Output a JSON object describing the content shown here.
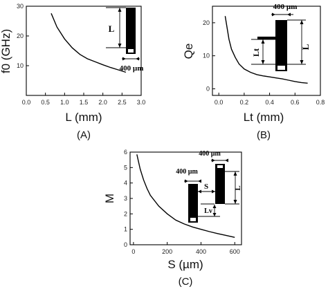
{
  "chart_data": [
    {
      "type": "line",
      "panel_label": "(A)",
      "xlabel": "L (mm)",
      "ylabel": "f0 (GHz)",
      "xlim": [
        0.0,
        3.0
      ],
      "ylim": [
        0,
        30
      ],
      "xticks": [
        "0.0",
        "0.5",
        "1.0",
        "1.5",
        "2.0",
        "2.5",
        "3.0"
      ],
      "yticks": [
        "10",
        "20",
        "30"
      ],
      "x": [
        0.65,
        0.8,
        1.0,
        1.2,
        1.4,
        1.6,
        1.8,
        2.0,
        2.2,
        2.4,
        2.6
      ],
      "y": [
        27.6,
        23.0,
        19.0,
        16.0,
        13.8,
        12.3,
        11.3,
        10.3,
        9.4,
        8.6,
        7.8
      ],
      "inset": {
        "height_label": "L",
        "width_label": "400 µm"
      }
    },
    {
      "type": "line",
      "panel_label": "(B)",
      "xlabel": "Lt (mm)",
      "ylabel": "Qe",
      "xlim": [
        -0.05,
        0.8
      ],
      "ylim": [
        -2,
        25
      ],
      "xticks": [
        "0.0",
        "0.2",
        "0.4",
        "0.6",
        "0.8"
      ],
      "yticks": [
        "0",
        "10",
        "20"
      ],
      "x": [
        0.05,
        0.08,
        0.1,
        0.13,
        0.16,
        0.2,
        0.25,
        0.3,
        0.35,
        0.4,
        0.45,
        0.5,
        0.55,
        0.6,
        0.65,
        0.7
      ],
      "y": [
        22.0,
        15.0,
        12.0,
        9.5,
        7.5,
        6.0,
        5.0,
        4.3,
        3.9,
        3.6,
        3.3,
        3.0,
        2.6,
        2.2,
        1.9,
        1.7
      ],
      "inset": {
        "width_label": "400 µm",
        "tap_label": "Lt",
        "height_label": "L"
      }
    },
    {
      "type": "line",
      "panel_label": "(C)",
      "xlabel": "S (µm)",
      "ylabel": "M",
      "xlim": [
        -20,
        640
      ],
      "ylim": [
        0,
        6
      ],
      "xticks": [
        "0",
        "200",
        "400",
        "600"
      ],
      "yticks": [
        "0",
        "1",
        "2",
        "3",
        "4",
        "5",
        "6"
      ],
      "x": [
        20,
        40,
        60,
        80,
        100,
        150,
        200,
        250,
        300,
        350,
        400,
        450,
        500,
        550,
        600
      ],
      "y": [
        5.85,
        4.9,
        4.2,
        3.65,
        3.2,
        2.5,
        2.0,
        1.6,
        1.35,
        1.15,
        1.0,
        0.85,
        0.72,
        0.6,
        0.48
      ],
      "inset": {
        "left_width_label": "400 µm",
        "right_width_label": "400 µm",
        "gap_label": "S",
        "tap_label": "Lv",
        "height_label": "L"
      }
    }
  ]
}
